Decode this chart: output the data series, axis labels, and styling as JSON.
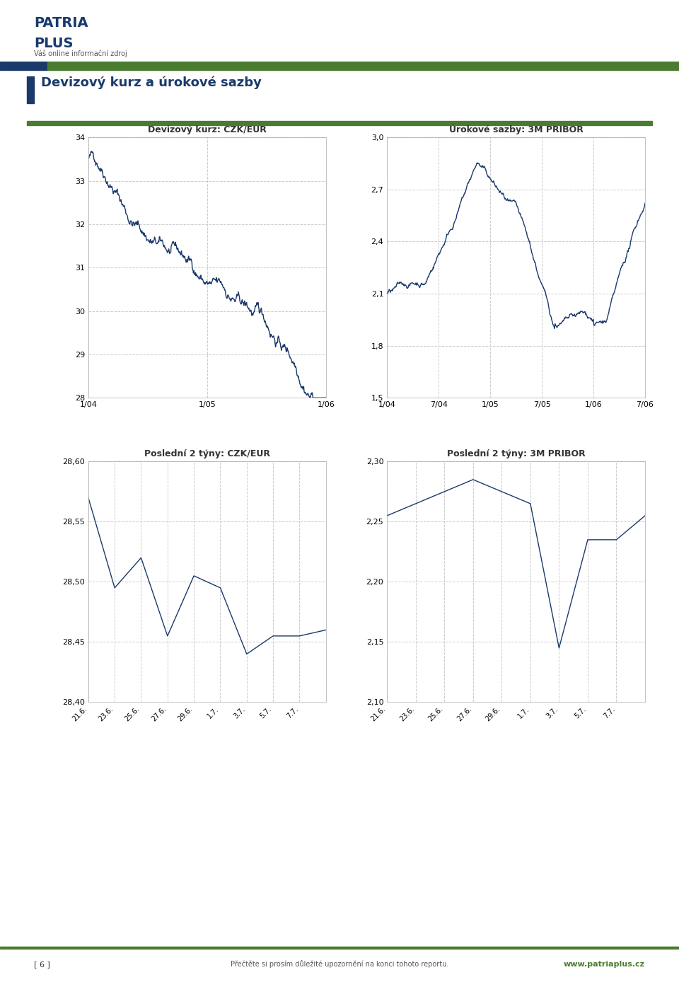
{
  "page_title": "Devizový kurz a úrokové sazby",
  "section_separator_color": "#4a7c2f",
  "title_bar_color": "#1a3a6b",
  "background_color": "#ffffff",
  "chart1_title": "Devizový kurz: CZK/EUR",
  "chart1_ylim": [
    28,
    34
  ],
  "chart1_yticks": [
    28,
    29,
    30,
    31,
    32,
    33,
    34
  ],
  "chart1_xticks": [
    "1/04",
    "1/05",
    "1/06"
  ],
  "chart1_line_color": "#1a3a6b",
  "chart2_title": "Úrokové sazby: 3M PRIBOR",
  "chart2_ylim": [
    1.5,
    3.0
  ],
  "chart2_yticks": [
    1.5,
    1.8,
    2.1,
    2.4,
    2.7,
    3.0
  ],
  "chart2_xticks": [
    "1/04",
    "7/04",
    "1/05",
    "7/05",
    "1/06",
    "7/06"
  ],
  "chart2_line_color": "#1a3a6b",
  "chart3_title": "Poslední 2 týny: CZK/EUR",
  "chart3_ylim": [
    28.4,
    28.6
  ],
  "chart3_yticks": [
    28.4,
    28.45,
    28.5,
    28.55,
    28.6
  ],
  "chart3_xticks": [
    "21.6.",
    "23.6.",
    "25.6.",
    "27.6.",
    "29.6.",
    "1.7.",
    "3.7.",
    "5.7.",
    "7.7."
  ],
  "chart3_line_color": "#1a3a6b",
  "chart3_values": [
    28.57,
    28.495,
    28.52,
    28.455,
    28.505,
    28.495,
    28.44,
    28.455,
    28.455,
    28.46
  ],
  "chart4_title": "Poslední 2 týny: 3M PRIBOR",
  "chart4_ylim": [
    2.1,
    2.3
  ],
  "chart4_yticks": [
    2.1,
    2.15,
    2.2,
    2.25,
    2.3
  ],
  "chart4_xticks": [
    "21.6.",
    "23.6.",
    "25.6.",
    "27.6.",
    "29.6.",
    "1.7.",
    "3.7.",
    "5.7.",
    "7.7."
  ],
  "chart4_line_color": "#1a3a6b",
  "chart4_values": [
    2.255,
    2.265,
    2.275,
    2.285,
    2.275,
    2.265,
    2.145,
    2.235,
    2.235,
    2.255
  ],
  "footer_text": "Přečtěte si prosím důležité upozornění na konci tohoto reportu.",
  "footer_url": "www.patriaplus.cz",
  "grid_color": "#cccccc",
  "grid_style": "--",
  "line_width": 1.0
}
